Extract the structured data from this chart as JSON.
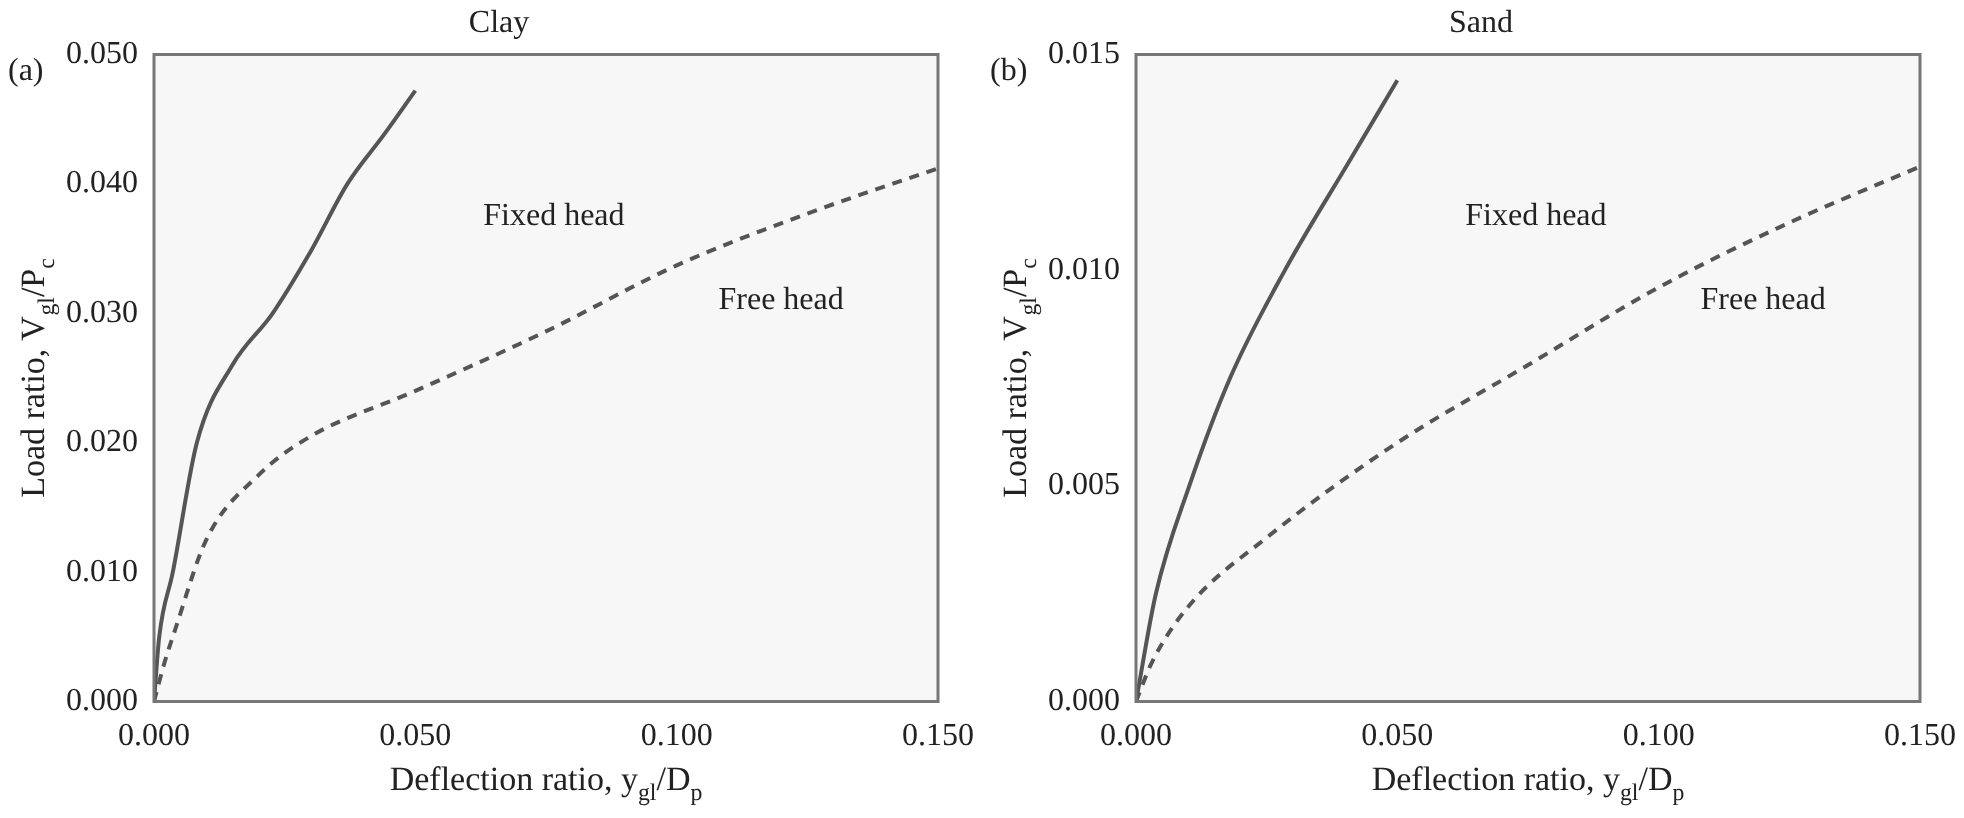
{
  "chart_data": [
    {
      "type": "line",
      "title": "Clay",
      "xlabel": "Deflection ratio, y$_{gl}$/D$_{p}$",
      "ylabel": "Load ratio, V$_{gl}$/P$_{c}$",
      "series": [
        {
          "color": "#555555",
          "line_style": "solid",
          "x": [
            0,
            0.001,
            0.0036,
            0.0082,
            0.015,
            0.0227,
            0.03,
            0.037,
            0.044,
            0.05
          ],
          "values": [
            0,
            0.005,
            0.01,
            0.02,
            0.026,
            0.03,
            0.0348,
            0.04,
            0.0438,
            0.0472
          ]
        },
        {
          "color": "#555555",
          "line_style": "dashed",
          "x": [
            0,
            0.002,
            0.004,
            0.01,
            0.02,
            0.03,
            0.05,
            0.075,
            0.1,
            0.125,
            0.15
          ],
          "values": [
            0,
            0.003,
            0.0055,
            0.0125,
            0.0175,
            0.0205,
            0.024,
            0.0286,
            0.0337,
            0.0377,
            0.0412
          ]
        }
      ],
      "xlim": [
        0,
        0.15
      ],
      "xticks": [
        {
          "value": 0,
          "label": "0.000"
        },
        {
          "value": 0.05,
          "label": "0.050"
        },
        {
          "value": 0.1,
          "label": "0.100"
        },
        {
          "value": 0.15,
          "label": "0.150"
        }
      ],
      "ylim": [
        0,
        0.05
      ],
      "yticks": [
        {
          "value": 0,
          "label": "0.000"
        },
        {
          "value": 0.01,
          "label": "0.010"
        },
        {
          "value": 0.02,
          "label": "0.020"
        },
        {
          "value": 0.03,
          "label": "0.030"
        },
        {
          "value": 0.04,
          "label": "0.040"
        },
        {
          "value": 0.05,
          "label": "0.050"
        }
      ],
      "grid": false,
      "legend": false,
      "marker": "none",
      "annotations": [
        "(a)",
        "Fixed head",
        "Free head"
      ]
    },
    {
      "type": "line",
      "title": "Sand",
      "xlabel": "Deflection ratio, y$_{gl}$/D$_{p}$",
      "ylabel": "Load ratio, V$_{gl}$/P$_{c}$",
      "series": [
        {
          "color": "#555555",
          "line_style": "solid",
          "x": [
            0,
            0.0038,
            0.0102,
            0.018,
            0.0285,
            0.0407,
            0.05
          ],
          "values": [
            0,
            0.0025,
            0.005,
            0.0075,
            0.01,
            0.0125,
            0.0144
          ]
        },
        {
          "color": "#555555",
          "line_style": "dashed",
          "x": [
            0,
            0.003,
            0.01,
            0.025,
            0.05,
            0.075,
            0.1,
            0.125,
            0.15
          ],
          "values": [
            0,
            0.0009,
            0.0022,
            0.0038,
            0.006,
            0.0078,
            0.0096,
            0.0111,
            0.0124
          ]
        }
      ],
      "xlim": [
        0,
        0.15
      ],
      "xticks": [
        {
          "value": 0,
          "label": "0.000"
        },
        {
          "value": 0.05,
          "label": "0.050"
        },
        {
          "value": 0.1,
          "label": "0.100"
        },
        {
          "value": 0.15,
          "label": "0.150"
        }
      ],
      "ylim": [
        0,
        0.015
      ],
      "yticks": [
        {
          "value": 0,
          "label": "0.000"
        },
        {
          "value": 0.005,
          "label": "0.005"
        },
        {
          "value": 0.01,
          "label": "0.010"
        },
        {
          "value": 0.015,
          "label": "0.015"
        }
      ],
      "grid": false,
      "legend": false,
      "marker": "none",
      "annotations": [
        "(b)",
        "Fixed head",
        "Free head"
      ]
    }
  ]
}
